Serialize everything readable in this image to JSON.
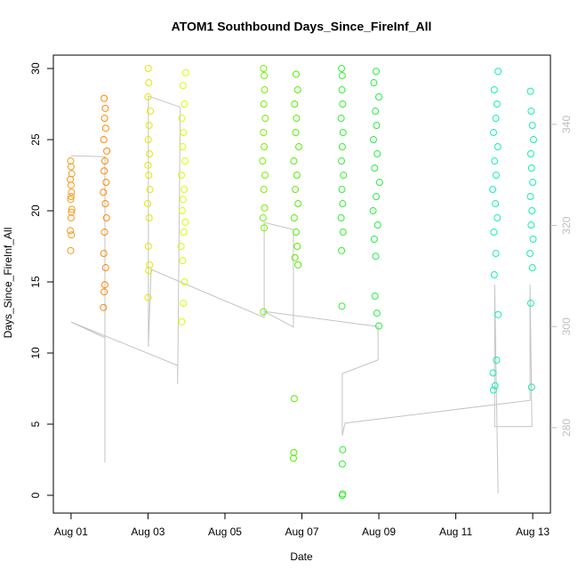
{
  "chart_data": {
    "type": "scatter",
    "title": "ATOM1 Southbound Days_Since_FireInf_All",
    "x_label": "Date",
    "y_label": "Days_Since_FireInf_All",
    "xlim": [
      0.54,
      13.46
    ],
    "ylim": [
      -1.25,
      30.94
    ],
    "y2lim": [
      263.1,
      353.7
    ],
    "xticks": [
      {
        "value": 1,
        "label": "Aug 01"
      },
      {
        "value": 3,
        "label": "Aug 03"
      },
      {
        "value": 5,
        "label": "Aug 05"
      },
      {
        "value": 7,
        "label": "Aug 07"
      },
      {
        "value": 9,
        "label": "Aug 09"
      },
      {
        "value": 11,
        "label": "Aug 11"
      },
      {
        "value": 13,
        "label": "Aug 13"
      }
    ],
    "yticks": [
      0,
      5,
      10,
      15,
      20,
      25,
      30
    ],
    "y2ticks": [
      280,
      300,
      320,
      340
    ],
    "series": [
      {
        "type": "line",
        "axis": "y2",
        "color": "#c4c4c4",
        "x": [
          1.0,
          1.88,
          1.88,
          1.88,
          1.0,
          3.77,
          3.77,
          3.84,
          3.01,
          3.01,
          3.08,
          6.02,
          6.02,
          6.78,
          6.78,
          6.02,
          8.98,
          8.98,
          8.05,
          8.05,
          8.12,
          12.93,
          12.93,
          12.98,
          12.01,
          12.01,
          12.1
        ],
        "values": [
          333.8,
          333.6,
          273.1,
          297.8,
          300.9,
          292.3,
          288.6,
          343.4,
          345.6,
          296.0,
          311.3,
          301.8,
          320.6,
          319.2,
          299.9,
          303.0,
          300.0,
          293.4,
          290.7,
          278.4,
          280.9,
          285.4,
          308.3,
          280.2,
          280.2,
          308.3,
          267.0
        ]
      },
      {
        "color": "#f59b1c",
        "x": [
          0.99,
          1.01,
          0.98,
          1.0,
          1.02,
          0.99,
          1.01,
          1.0,
          0.98,
          1.02,
          1.0,
          0.99,
          1.01,
          1.0
        ],
        "values": [
          17.2,
          18.3,
          18.6,
          19.5,
          20.1,
          20.8,
          21.3,
          21.8,
          22.2,
          22.6,
          23.1,
          23.5,
          19.9,
          21.0
        ]
      },
      {
        "color": "#ff8800",
        "x": [
          1.84,
          1.86,
          1.88,
          1.9,
          1.85,
          1.87,
          1.92,
          1.89,
          1.84,
          1.91,
          1.86,
          1.88,
          1.93,
          1.85,
          1.9,
          1.87,
          1.89,
          1.86
        ],
        "values": [
          13.2,
          14.3,
          14.8,
          16.0,
          17.0,
          18.5,
          19.5,
          20.5,
          21.3,
          22.0,
          22.8,
          23.5,
          24.2,
          25.0,
          25.8,
          26.5,
          27.2,
          27.9
        ]
      },
      {
        "color": "#e6e600",
        "x": [
          3.0,
          3.02,
          3.04,
          3.01,
          3.03,
          2.99,
          3.05,
          3.02,
          3.0,
          3.04,
          3.01,
          3.03,
          3.06,
          3.0,
          3.02,
          3.01
        ],
        "values": [
          13.9,
          15.8,
          16.2,
          17.5,
          19.5,
          20.5,
          21.5,
          22.5,
          23.2,
          24.0,
          25.0,
          26.0,
          27.0,
          28.0,
          29.0,
          30.0
        ]
      },
      {
        "color": "#d4ff00",
        "x": [
          3.88,
          3.92,
          3.95,
          3.9,
          3.86,
          3.93,
          3.97,
          3.89,
          3.91,
          3.94,
          3.87,
          3.96,
          3.9,
          3.92,
          3.88,
          3.95,
          3.91,
          3.98
        ],
        "values": [
          12.2,
          13.5,
          15.0,
          16.5,
          17.5,
          18.5,
          19.2,
          20.0,
          20.8,
          21.5,
          22.5,
          23.5,
          24.5,
          25.5,
          26.5,
          27.5,
          28.8,
          29.7
        ]
      },
      {
        "color": "#77ee00",
        "x": [
          6.0,
          6.02,
          5.99,
          6.03,
          6.01,
          6.04,
          5.98,
          6.02,
          6.0,
          6.05,
          6.01,
          6.03,
          6.02,
          6.0
        ],
        "values": [
          12.9,
          18.8,
          19.5,
          20.2,
          21.5,
          22.5,
          23.5,
          24.5,
          25.5,
          26.5,
          27.5,
          28.5,
          29.5,
          30.0
        ]
      },
      {
        "color": "#55ee00",
        "x": [
          6.78,
          6.79,
          6.8,
          6.9,
          6.82,
          6.88,
          6.85,
          6.8,
          6.9,
          6.83,
          6.87,
          6.79,
          6.92,
          6.84,
          6.86,
          6.81,
          6.89,
          6.85
        ],
        "values": [
          2.6,
          3.0,
          6.8,
          16.2,
          16.7,
          17.5,
          18.5,
          19.5,
          20.5,
          21.5,
          22.5,
          23.5,
          24.5,
          25.5,
          26.5,
          27.5,
          28.5,
          29.6
        ]
      },
      {
        "color": "#33ee33",
        "x": [
          8.05,
          8.06,
          8.05,
          8.06,
          8.04,
          8.03,
          8.07,
          8.02,
          8.06,
          8.04,
          8.08,
          8.03,
          8.05,
          8.07,
          8.02,
          8.06,
          8.04,
          8.05,
          8.03
        ],
        "values": [
          0.0,
          0.1,
          2.2,
          3.2,
          13.3,
          17.2,
          18.5,
          19.5,
          20.5,
          21.5,
          22.5,
          23.5,
          24.5,
          25.5,
          26.5,
          27.5,
          28.5,
          29.5,
          30.0
        ]
      },
      {
        "color": "#22ee44",
        "x": [
          9.0,
          8.95,
          8.9,
          8.92,
          8.88,
          8.97,
          8.85,
          8.93,
          9.02,
          8.89,
          8.96,
          8.86,
          8.94,
          8.91,
          9.0,
          8.87,
          8.93
        ],
        "values": [
          11.9,
          12.8,
          14.0,
          16.8,
          18.0,
          19.0,
          20.0,
          21.0,
          22.0,
          23.0,
          24.0,
          25.0,
          26.0,
          27.0,
          28.0,
          29.0,
          29.8
        ]
      },
      {
        "color": "#11eebb",
        "x": [
          11.98,
          12.02,
          11.97,
          12.06,
          12.1,
          12.0,
          12.04,
          11.99,
          12.08,
          12.03,
          11.96,
          12.05,
          12.01,
          12.09,
          11.98,
          12.04,
          12.07,
          12.0,
          12.1
        ],
        "values": [
          7.4,
          7.7,
          8.6,
          9.5,
          12.7,
          15.5,
          17.0,
          18.5,
          19.5,
          20.5,
          21.5,
          22.5,
          23.5,
          24.5,
          25.5,
          26.5,
          27.5,
          28.5,
          29.8
        ]
      },
      {
        "color": "#11eeaa",
        "x": [
          12.97,
          12.95,
          12.99,
          12.93,
          13.01,
          12.96,
          12.98,
          12.94,
          13.0,
          12.97,
          12.95,
          13.02,
          12.99,
          12.96,
          12.94
        ],
        "values": [
          7.6,
          13.5,
          16.0,
          17.0,
          18.0,
          19.0,
          20.0,
          21.0,
          22.0,
          23.0,
          24.0,
          25.0,
          26.0,
          27.0,
          28.4
        ]
      }
    ]
  }
}
